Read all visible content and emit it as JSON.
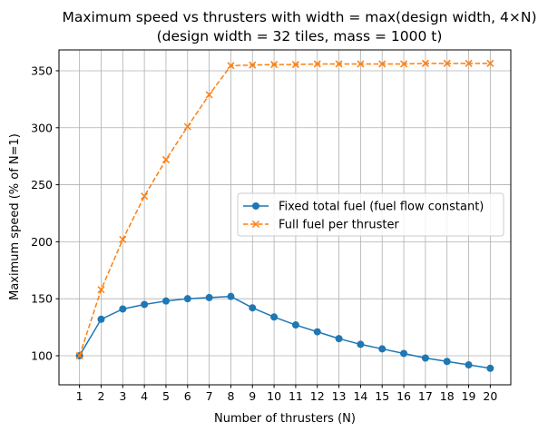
{
  "chart_data": {
    "type": "line",
    "title": "Maximum speed vs thrusters with width = max(design width, 4×N)",
    "subtitle": "(design width = 32 tiles, mass = 1000 t)",
    "xlabel": "Number of thrusters (N)",
    "ylabel": "Maximum speed (% of N=1)",
    "xlim": [
      0.05,
      20.95
    ],
    "ylim": [
      74.5,
      368.3
    ],
    "xticks": [
      1,
      2,
      3,
      4,
      5,
      6,
      7,
      8,
      9,
      10,
      11,
      12,
      13,
      14,
      15,
      16,
      17,
      18,
      19,
      20
    ],
    "yticks": [
      100,
      150,
      200,
      250,
      300,
      350
    ],
    "grid": true,
    "legend_placement": "center-right",
    "x": [
      1,
      2,
      3,
      4,
      5,
      6,
      7,
      8,
      9,
      10,
      11,
      12,
      13,
      14,
      15,
      16,
      17,
      18,
      19,
      20
    ],
    "series": [
      {
        "name": "Fixed total fuel (fuel flow constant)",
        "color": "#1f77b4",
        "marker": "circle",
        "linestyle": "solid",
        "values": [
          100,
          132,
          141,
          145,
          148,
          150,
          151,
          152,
          142,
          134,
          127,
          121,
          115,
          110,
          106,
          102,
          98,
          95,
          92,
          89
        ]
      },
      {
        "name": "Full fuel per thruster",
        "color": "#ff7f0e",
        "marker": "x",
        "linestyle": "dashed",
        "values": [
          100,
          158,
          202,
          240,
          272,
          301,
          329,
          354.5,
          355,
          355.5,
          355.5,
          356,
          356,
          356,
          356,
          356,
          356.5,
          356.5,
          356.5,
          356.5
        ]
      }
    ]
  }
}
